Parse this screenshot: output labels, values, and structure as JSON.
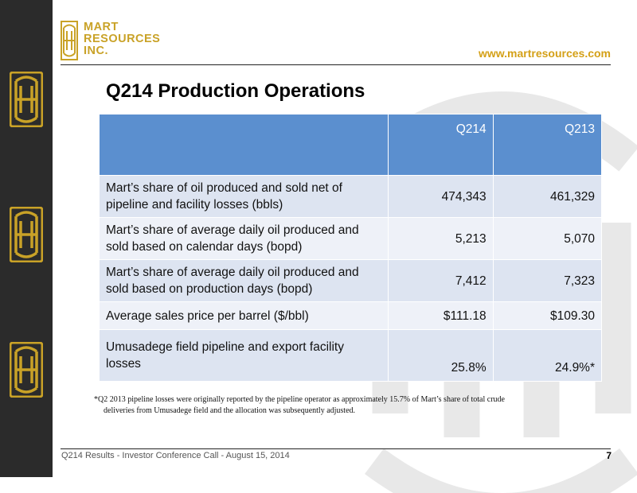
{
  "company": {
    "line1": "MART",
    "line2": "RESOURCES",
    "line3": "INC.",
    "brand_color": "#c9a227"
  },
  "website": "www.martresources.com",
  "title": "Q214 Production Operations",
  "table": {
    "columns": [
      "",
      "Q214",
      "Q213"
    ],
    "header_color": "#5b8fcf",
    "rows": [
      {
        "label": "Mart’s share of oil produced and sold net of pipeline and facility losses (bbls)",
        "q214": "474,343",
        "q213": "461,329"
      },
      {
        "label": "Mart’s share of average daily oil produced and sold based on calendar days (bopd)",
        "q214": "5,213",
        "q213": "5,070"
      },
      {
        "label": "Mart’s share of average daily oil produced and sold based on production days (bopd)",
        "q214": "7,412",
        "q213": "7,323"
      },
      {
        "label": "Average sales price per barrel ($/bbl)",
        "q214": "$111.18",
        "q213": "$109.30"
      },
      {
        "label": "Umusadege field pipeline and export facility losses",
        "q214": "25.8%",
        "q213": "24.9%*"
      }
    ]
  },
  "footnote": {
    "line1": "*Q2 2013 pipeline losses were originally reported by the pipeline operator as approximately 15.7% of Mart’s share of total crude",
    "line2": "deliveries from Umusadege field and the allocation was subsequently adjusted."
  },
  "footer": {
    "text": "Q214 Results - Investor Conference Call - August 15, 2014",
    "page": "7"
  }
}
